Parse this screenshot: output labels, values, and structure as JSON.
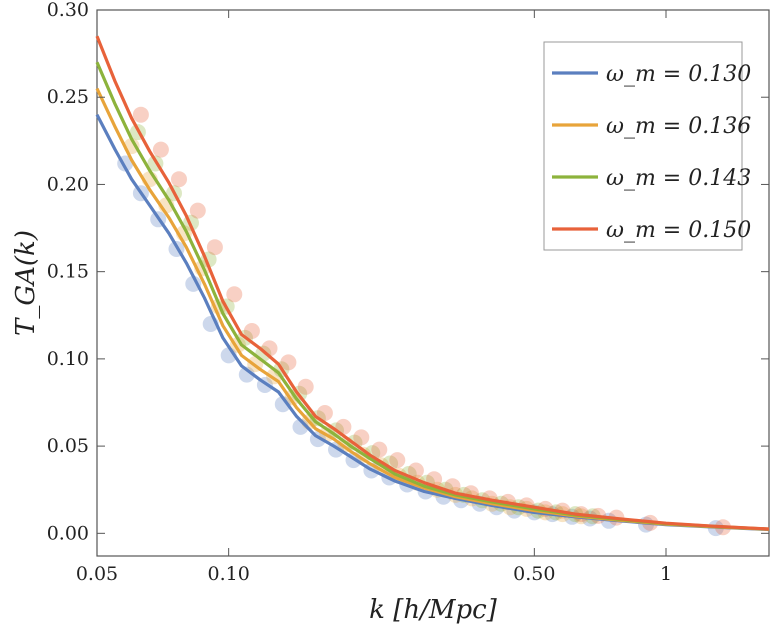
{
  "chart_data": {
    "type": "line",
    "x_scale": "log",
    "xlabel": "k [h/Mpc]",
    "ylabel": "T_GA(k)",
    "xlim": [
      0.05,
      1.72
    ],
    "ylim": [
      -0.013,
      0.3
    ],
    "x_ticks": [
      {
        "value": 0.05,
        "label": "0.05"
      },
      {
        "value": 0.1,
        "label": "0.10"
      },
      {
        "value": 0.5,
        "label": "0.50"
      },
      {
        "value": 1.0,
        "label": "1"
      }
    ],
    "y_ticks": [
      {
        "value": 0.0,
        "label": "0.00"
      },
      {
        "value": 0.05,
        "label": "0.05"
      },
      {
        "value": 0.1,
        "label": "0.10"
      },
      {
        "value": 0.15,
        "label": "0.15"
      },
      {
        "value": 0.2,
        "label": "0.20"
      },
      {
        "value": 0.25,
        "label": "0.25"
      },
      {
        "value": 0.3,
        "label": "0.30"
      }
    ],
    "legend_position": "top-right",
    "series": [
      {
        "name": "ω_m = 0.130",
        "color": "#5b7fbf",
        "line": {
          "x": [
            0.05,
            0.055,
            0.06,
            0.066,
            0.073,
            0.08,
            0.088,
            0.097,
            0.107,
            0.118,
            0.13,
            0.143,
            0.158,
            0.174,
            0.19,
            0.21,
            0.24,
            0.28,
            0.33,
            0.4,
            0.5,
            0.62,
            0.78,
            1.0,
            1.3,
            1.72
          ],
          "y": [
            0.24,
            0.22,
            0.203,
            0.188,
            0.172,
            0.155,
            0.135,
            0.112,
            0.096,
            0.088,
            0.081,
            0.067,
            0.056,
            0.05,
            0.044,
            0.037,
            0.03,
            0.024,
            0.02,
            0.016,
            0.012,
            0.0095,
            0.0072,
            0.005,
            0.0035,
            0.0022
          ]
        },
        "points": {
          "x": [
            0.058,
            0.063,
            0.069,
            0.076,
            0.083,
            0.091,
            0.1,
            0.11,
            0.121,
            0.133,
            0.146,
            0.16,
            0.176,
            0.193,
            0.212,
            0.233,
            0.256,
            0.282,
            0.31,
            0.34,
            0.375,
            0.41,
            0.45,
            0.5,
            0.55,
            0.61,
            0.67,
            0.74,
            0.9,
            1.3
          ],
          "y": [
            0.212,
            0.195,
            0.18,
            0.163,
            0.143,
            0.12,
            0.102,
            0.091,
            0.085,
            0.074,
            0.061,
            0.054,
            0.048,
            0.042,
            0.036,
            0.032,
            0.028,
            0.024,
            0.021,
            0.019,
            0.017,
            0.015,
            0.013,
            0.012,
            0.011,
            0.0095,
            0.0085,
            0.0072,
            0.005,
            0.003
          ]
        }
      },
      {
        "name": "ω_m = 0.136",
        "color": "#e8a43a",
        "line": {
          "x": [
            0.05,
            0.055,
            0.06,
            0.066,
            0.073,
            0.08,
            0.088,
            0.097,
            0.107,
            0.118,
            0.13,
            0.143,
            0.158,
            0.174,
            0.19,
            0.21,
            0.24,
            0.28,
            0.33,
            0.4,
            0.5,
            0.62,
            0.78,
            1.0,
            1.3,
            1.72
          ],
          "y": [
            0.255,
            0.233,
            0.214,
            0.197,
            0.181,
            0.164,
            0.143,
            0.119,
            0.102,
            0.094,
            0.087,
            0.072,
            0.06,
            0.054,
            0.047,
            0.04,
            0.032,
            0.026,
            0.021,
            0.017,
            0.013,
            0.01,
            0.0076,
            0.0053,
            0.0037,
            0.0023
          ]
        },
        "points": {
          "x": [
            0.06,
            0.066,
            0.072,
            0.079,
            0.087,
            0.095,
            0.105,
            0.115,
            0.127,
            0.14,
            0.153,
            0.168,
            0.185,
            0.203,
            0.223,
            0.245,
            0.27,
            0.3,
            0.33,
            0.36,
            0.4,
            0.44,
            0.48,
            0.53,
            0.58,
            0.64
          ],
          "y": [
            0.222,
            0.203,
            0.188,
            0.172,
            0.152,
            0.13,
            0.108,
            0.097,
            0.09,
            0.078,
            0.064,
            0.057,
            0.051,
            0.045,
            0.039,
            0.033,
            0.029,
            0.025,
            0.022,
            0.02,
            0.017,
            0.015,
            0.014,
            0.012,
            0.011,
            0.0098
          ]
        }
      },
      {
        "name": "ω_m = 0.143",
        "color": "#8db33c",
        "line": {
          "x": [
            0.05,
            0.055,
            0.06,
            0.066,
            0.073,
            0.08,
            0.088,
            0.097,
            0.107,
            0.118,
            0.13,
            0.143,
            0.158,
            0.174,
            0.19,
            0.21,
            0.24,
            0.28,
            0.33,
            0.4,
            0.5,
            0.62,
            0.78,
            1.0,
            1.3,
            1.72
          ],
          "y": [
            0.27,
            0.246,
            0.226,
            0.208,
            0.191,
            0.173,
            0.151,
            0.126,
            0.108,
            0.1,
            0.092,
            0.077,
            0.064,
            0.057,
            0.05,
            0.043,
            0.034,
            0.027,
            0.022,
            0.018,
            0.014,
            0.0105,
            0.008,
            0.0056,
            0.0039,
            0.0024
          ]
        },
        "points": {
          "x": [
            0.062,
            0.068,
            0.075,
            0.082,
            0.09,
            0.099,
            0.109,
            0.12,
            0.132,
            0.145,
            0.16,
            0.176,
            0.194,
            0.213,
            0.234,
            0.258,
            0.284,
            0.313,
            0.345,
            0.38,
            0.42,
            0.46,
            0.51,
            0.56,
            0.62,
            0.68
          ],
          "y": [
            0.23,
            0.212,
            0.195,
            0.178,
            0.157,
            0.13,
            0.112,
            0.103,
            0.094,
            0.08,
            0.066,
            0.059,
            0.052,
            0.046,
            0.04,
            0.034,
            0.029,
            0.025,
            0.022,
            0.019,
            0.017,
            0.015,
            0.013,
            0.012,
            0.011,
            0.0098
          ]
        }
      },
      {
        "name": "ω_m = 0.150",
        "color": "#e8623a",
        "line": {
          "x": [
            0.05,
            0.055,
            0.06,
            0.066,
            0.073,
            0.08,
            0.088,
            0.097,
            0.107,
            0.118,
            0.13,
            0.143,
            0.158,
            0.174,
            0.19,
            0.21,
            0.24,
            0.28,
            0.33,
            0.4,
            0.5,
            0.62,
            0.78,
            1.0,
            1.3,
            1.72
          ],
          "y": [
            0.285,
            0.259,
            0.238,
            0.219,
            0.201,
            0.182,
            0.159,
            0.133,
            0.114,
            0.106,
            0.097,
            0.081,
            0.067,
            0.06,
            0.053,
            0.045,
            0.036,
            0.029,
            0.023,
            0.019,
            0.015,
            0.011,
            0.0084,
            0.0058,
            0.004,
            0.0025
          ]
        },
        "points": {
          "x": [
            0.063,
            0.07,
            0.077,
            0.085,
            0.093,
            0.103,
            0.113,
            0.124,
            0.137,
            0.15,
            0.166,
            0.183,
            0.201,
            0.221,
            0.243,
            0.268,
            0.295,
            0.325,
            0.358,
            0.395,
            0.435,
            0.48,
            0.53,
            0.58,
            0.64,
            0.7,
            0.77,
            0.92,
            1.35
          ],
          "y": [
            0.24,
            0.22,
            0.203,
            0.185,
            0.164,
            0.137,
            0.116,
            0.106,
            0.098,
            0.084,
            0.069,
            0.061,
            0.055,
            0.048,
            0.042,
            0.036,
            0.031,
            0.027,
            0.023,
            0.02,
            0.018,
            0.016,
            0.014,
            0.013,
            0.011,
            0.01,
            0.009,
            0.006,
            0.0035
          ]
        }
      }
    ]
  }
}
